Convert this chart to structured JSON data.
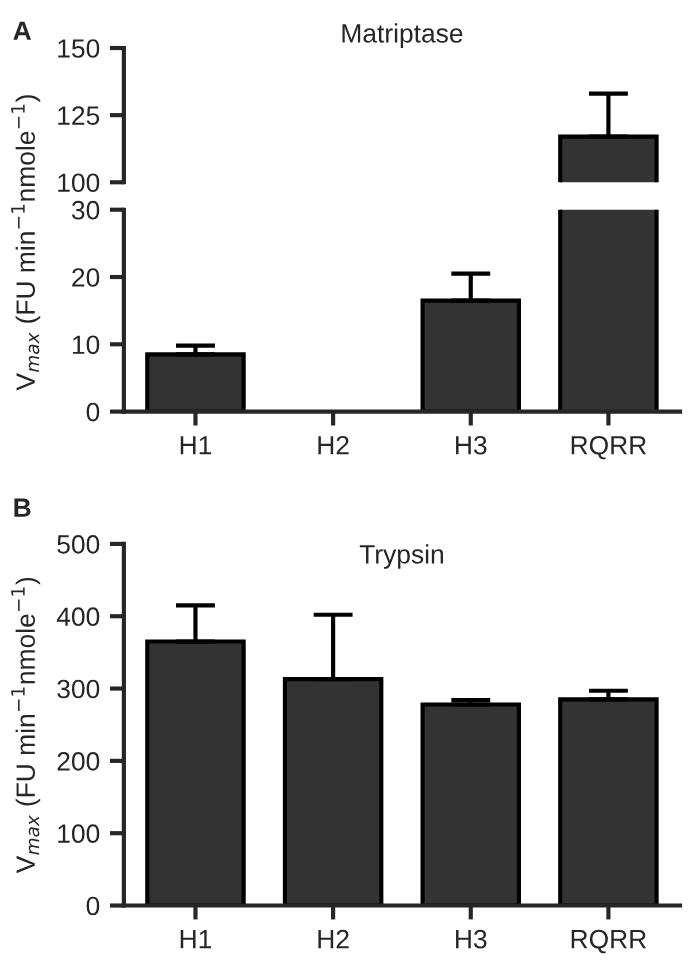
{
  "chart_data": [
    {
      "type": "bar",
      "title": "Matriptase",
      "values": [
        null,
        null,
        null,
        117
      ],
      "errors": [
        null,
        null,
        null,
        [
          117,
          133
        ]
      ],
      "color": "#333333",
      "ylim": [
        100,
        150
      ],
      "yticks": [
        100,
        125,
        150
      ],
      "tick_labels": "y",
      "grid": false,
      "annotations": [
        "A"
      ]
    },
    {
      "type": "bar",
      "ylabel": "V$_{max}$ (FU min$^{−1}$nmole$^{−1}$)",
      "categories": [
        "H1",
        "H2",
        "H3",
        "RQRR"
      ],
      "values": [
        8.5,
        null,
        16.5,
        null
      ],
      "errors": [
        [
          8.5,
          9.8
        ],
        null,
        [
          16.5,
          20.5
        ],
        null
      ],
      "color": "#333333",
      "ylim": [
        0,
        30
      ],
      "yticks": [
        0,
        10,
        20,
        30
      ],
      "grid": false
    },
    {
      "type": "bar",
      "title": "Trypsin",
      "ylabel": "V$_{max}$ (FU min$^{−1}$nmole$^{−1}$)",
      "categories": [
        "H1",
        "H2",
        "H3",
        "RQRR"
      ],
      "values": [
        365,
        313,
        278,
        285
      ],
      "errors": [
        [
          365,
          415
        ],
        [
          313,
          402
        ],
        [
          278,
          284
        ],
        [
          285,
          297
        ]
      ],
      "color": "#333333",
      "ylim": [
        0,
        500
      ],
      "yticks": [
        0,
        100,
        200,
        300,
        400,
        500
      ],
      "grid": false,
      "annotations": [
        "B"
      ]
    }
  ]
}
